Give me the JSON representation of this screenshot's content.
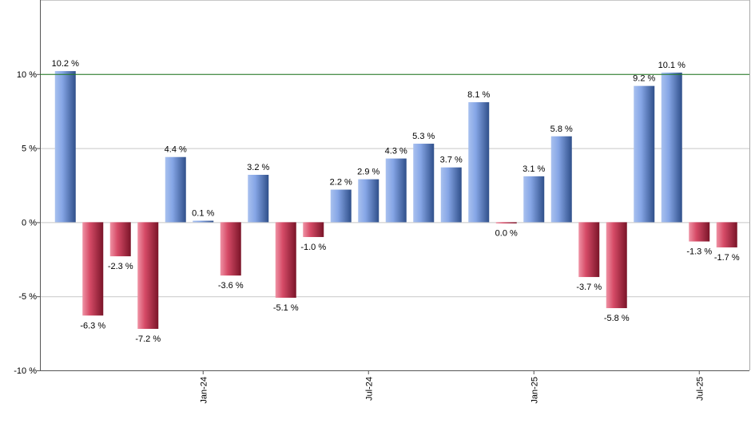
{
  "chart_data": {
    "type": "bar",
    "title": "",
    "xlabel": "",
    "ylabel": "",
    "ylim": [
      -10,
      15
    ],
    "yticks": [
      -10,
      -5,
      0,
      5,
      10
    ],
    "ytick_labels": [
      "-10 %",
      "-5 %",
      "0 %",
      "5 %",
      "10 %"
    ],
    "grid": true,
    "reference_line": {
      "value": 10,
      "color": "#1f7a1f"
    },
    "x_tick_labels": [
      {
        "label": "Jan-24",
        "index": 5.5
      },
      {
        "label": "Jul-24",
        "index": 11.5
      },
      {
        "label": "Jan-25",
        "index": 17.5
      },
      {
        "label": "Jul-25",
        "index": 23.5
      }
    ],
    "values": [
      10.2,
      -6.3,
      -2.3,
      -7.2,
      4.4,
      0.1,
      -3.6,
      3.2,
      -5.1,
      -1.0,
      2.2,
      2.9,
      4.3,
      5.3,
      3.7,
      8.1,
      0.0,
      3.1,
      5.8,
      -3.7,
      -5.8,
      9.2,
      10.1,
      -1.3,
      -1.7
    ],
    "value_labels": [
      "10.2 %",
      "-6.3 %",
      "-2.3 %",
      "-7.2 %",
      "4.4 %",
      "0.1 %",
      "-3.6 %",
      "3.2 %",
      "-5.1 %",
      "-1.0 %",
      "2.2 %",
      "2.9 %",
      "4.3 %",
      "5.3 %",
      "3.7 %",
      "8.1 %",
      "0.0 %",
      "3.1 %",
      "5.8 %",
      "-3.7 %",
      "-5.8 %",
      "9.2 %",
      "10.1 %",
      "-1.3 %",
      "-1.7 %"
    ],
    "colors": {
      "positive": "#5b84d6",
      "negative": "#c8304f"
    }
  }
}
